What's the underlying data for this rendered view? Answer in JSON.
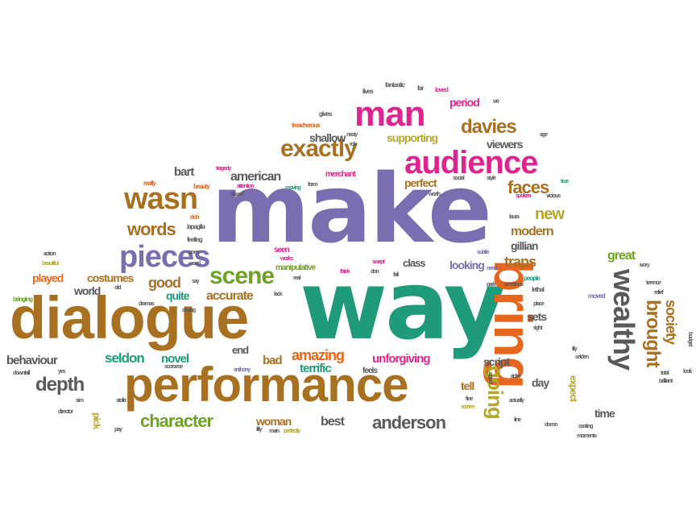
{
  "colors": {
    "brown": "#a87122",
    "purple": "#7a6db0",
    "teal": "#1f9a7a",
    "magenta": "#e0248d",
    "orange": "#e5661c",
    "gray": "#57595b",
    "green": "#6ea227",
    "olive": "#b3a82b"
  },
  "words": [
    {
      "text": "make",
      "color": "purple"
    },
    {
      "text": "way",
      "color": "teal"
    },
    {
      "text": "dialogue",
      "color": "brown"
    },
    {
      "text": "performance",
      "color": "brown"
    },
    {
      "text": "bring",
      "color": "orange"
    },
    {
      "text": "man",
      "color": "magenta"
    },
    {
      "text": "audience",
      "color": "magenta"
    },
    {
      "text": "exactly",
      "color": "brown"
    },
    {
      "text": "pieces",
      "color": "purple"
    },
    {
      "text": "wasn",
      "color": "brown"
    },
    {
      "text": "wealthy",
      "color": "gray"
    },
    {
      "text": "davies",
      "color": "brown"
    },
    {
      "text": "faces",
      "color": "brown"
    },
    {
      "text": "scene",
      "color": "green"
    },
    {
      "text": "words",
      "color": "brown"
    },
    {
      "text": "character",
      "color": "green"
    },
    {
      "text": "anderson",
      "color": "gray"
    },
    {
      "text": "depth",
      "color": "gray"
    },
    {
      "text": "amazing",
      "color": "orange"
    },
    {
      "text": "going",
      "color": "olive"
    },
    {
      "text": "brought",
      "color": "brown"
    },
    {
      "text": "society",
      "color": "brown"
    },
    {
      "text": "american",
      "color": "gray"
    },
    {
      "text": "perfect",
      "color": "brown"
    },
    {
      "text": "new",
      "color": "olive"
    },
    {
      "text": "modern",
      "color": "brown"
    },
    {
      "text": "traps",
      "color": "brown"
    },
    {
      "text": "gillian",
      "color": "gray"
    },
    {
      "text": "great",
      "color": "green"
    },
    {
      "text": "costumes",
      "color": "brown"
    },
    {
      "text": "good",
      "color": "brown"
    },
    {
      "text": "accurate",
      "color": "brown"
    },
    {
      "text": "period",
      "color": "magenta"
    },
    {
      "text": "supporting",
      "color": "olive"
    },
    {
      "text": "shallow",
      "color": "gray"
    },
    {
      "text": "viewers",
      "color": "gray"
    },
    {
      "text": "looking",
      "color": "purple"
    },
    {
      "text": "class",
      "color": "gray"
    },
    {
      "text": "sets",
      "color": "gray"
    },
    {
      "text": "script",
      "color": "gray"
    },
    {
      "text": "day",
      "color": "gray"
    },
    {
      "text": "tell",
      "color": "brown"
    },
    {
      "text": "time",
      "color": "gray"
    },
    {
      "text": "expect",
      "color": "olive"
    },
    {
      "text": "seldon",
      "color": "teal"
    },
    {
      "text": "novel",
      "color": "teal"
    },
    {
      "text": "terrific",
      "color": "teal"
    },
    {
      "text": "end",
      "color": "gray"
    },
    {
      "text": "bad",
      "color": "brown"
    },
    {
      "text": "unforgiving",
      "color": "magenta"
    },
    {
      "text": "best",
      "color": "gray"
    },
    {
      "text": "woman",
      "color": "brown"
    },
    {
      "text": "behaviour",
      "color": "gray"
    },
    {
      "text": "bart",
      "color": "gray"
    },
    {
      "text": "world",
      "color": "gray"
    },
    {
      "text": "played",
      "color": "orange"
    },
    {
      "text": "quite",
      "color": "teal"
    },
    {
      "text": "pick",
      "color": "olive"
    },
    {
      "text": "merchant",
      "color": "magenta"
    },
    {
      "text": "manipulative",
      "color": "green"
    },
    {
      "text": "seen",
      "color": "magenta"
    },
    {
      "text": "feels",
      "color": "gray"
    },
    {
      "text": "moved",
      "color": "purple"
    },
    {
      "text": "lethal",
      "color": "gray"
    },
    {
      "text": "emotions",
      "color": "gray"
    },
    {
      "text": "people",
      "color": "teal"
    },
    {
      "text": "lapaglia",
      "color": "gray"
    },
    {
      "text": "feeling",
      "color": "gray"
    },
    {
      "text": "rich",
      "color": "orange"
    },
    {
      "text": "beauty",
      "color": "orange"
    },
    {
      "text": "really",
      "color": "orange"
    },
    {
      "text": "tragedy",
      "color": "magenta"
    },
    {
      "text": "attention",
      "color": "magenta"
    },
    {
      "text": "dissed",
      "color": "gray"
    },
    {
      "text": "moving",
      "color": "teal"
    },
    {
      "text": "form",
      "color": "gray"
    },
    {
      "text": "role",
      "color": "gray"
    },
    {
      "text": "nasty",
      "color": "gray"
    },
    {
      "text": "treacherous",
      "color": "orange"
    },
    {
      "text": "gives",
      "color": "gray"
    },
    {
      "text": "lives",
      "color": "gray"
    },
    {
      "text": "fantastic",
      "color": "gray"
    },
    {
      "text": "far",
      "color": "gray"
    },
    {
      "text": "loved",
      "color": "magenta"
    },
    {
      "text": "ve",
      "color": "gray"
    },
    {
      "text": "age",
      "color": "gray"
    },
    {
      "text": "social",
      "color": "gray"
    },
    {
      "text": "style",
      "color": "gray"
    },
    {
      "text": "true",
      "color": "teal"
    },
    {
      "text": "worth",
      "color": "gray"
    },
    {
      "text": "spoken",
      "color": "magenta"
    },
    {
      "text": "vicious",
      "color": "gray"
    },
    {
      "text": "laura",
      "color": "gray"
    },
    {
      "text": "subtle",
      "color": "purple"
    },
    {
      "text": "swept",
      "color": "magenta"
    },
    {
      "text": "need",
      "color": "purple"
    },
    {
      "text": "think",
      "color": "magenta"
    },
    {
      "text": "don",
      "color": "gray"
    },
    {
      "text": "fall",
      "color": "gray"
    },
    {
      "text": "real",
      "color": "gray"
    },
    {
      "text": "lack",
      "color": "gray"
    },
    {
      "text": "works",
      "color": "magenta"
    },
    {
      "text": "say",
      "color": "gray"
    },
    {
      "text": "used",
      "color": "gray"
    },
    {
      "text": "goes",
      "color": "gray"
    },
    {
      "text": "action",
      "color": "gray"
    },
    {
      "text": "beautiful",
      "color": "olive"
    },
    {
      "text": "bringing",
      "color": "green"
    },
    {
      "text": "old",
      "color": "gray"
    },
    {
      "text": "dramas",
      "color": "gray"
    },
    {
      "text": "driving",
      "color": "gray"
    },
    {
      "text": "scorsese",
      "color": "gray"
    },
    {
      "text": "anthony",
      "color": "purple"
    },
    {
      "text": "downfall",
      "color": "gray"
    },
    {
      "text": "yes",
      "color": "gray"
    },
    {
      "text": "sim",
      "color": "gray"
    },
    {
      "text": "stoltz",
      "color": "gray"
    },
    {
      "text": "director",
      "color": "gray"
    },
    {
      "text": "pay",
      "color": "gray"
    },
    {
      "text": "lilly",
      "color": "gray"
    },
    {
      "text": "main",
      "color": "gray"
    },
    {
      "text": "perfectly",
      "color": "olive"
    },
    {
      "text": "screen",
      "color": "olive"
    },
    {
      "text": "fine",
      "color": "gray"
    },
    {
      "text": "actually",
      "color": "gray"
    },
    {
      "text": "doesn",
      "color": "gray"
    },
    {
      "text": "casting",
      "color": "gray"
    },
    {
      "text": "line",
      "color": "gray"
    },
    {
      "text": "moments",
      "color": "gray"
    },
    {
      "text": "place",
      "color": "gray"
    },
    {
      "text": "right",
      "color": "gray"
    },
    {
      "text": "lily",
      "color": "gray"
    },
    {
      "text": "selden",
      "color": "gray"
    },
    {
      "text": "park",
      "color": "gray"
    },
    {
      "text": "upper",
      "color": "gray"
    },
    {
      "text": "riche",
      "color": "gray"
    },
    {
      "text": "ivory",
      "color": "gray"
    },
    {
      "text": "terence",
      "color": "gray"
    },
    {
      "text": "relief",
      "color": "gray"
    },
    {
      "text": "total",
      "color": "gray"
    },
    {
      "text": "brilliant",
      "color": "gray"
    },
    {
      "text": "budget",
      "color": "gray"
    },
    {
      "text": "look",
      "color": "gray"
    }
  ]
}
